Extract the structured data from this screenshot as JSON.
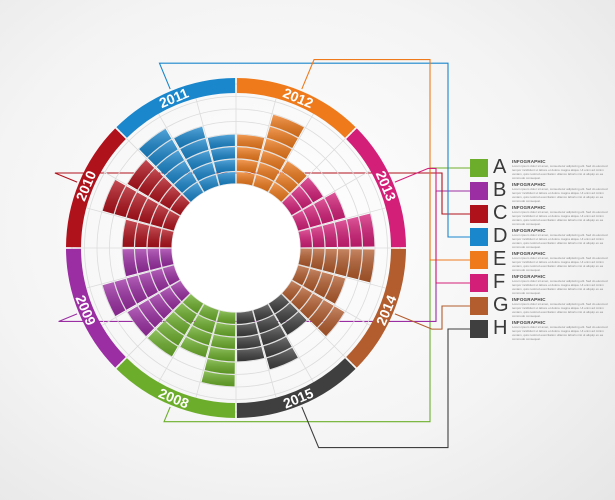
{
  "colors": {
    "green": "#6cae2b",
    "purple": "#9b2ea3",
    "red": "#b0121c",
    "blue": "#1a86cc",
    "orange": "#ee7a1c",
    "magenta": "#d41f79",
    "brown": "#b35c2d",
    "dark": "#3f3f3f"
  },
  "years": [
    {
      "label": "2009",
      "color": "#9b2ea3"
    },
    {
      "label": "2010",
      "color": "#b0121c"
    },
    {
      "label": "2011",
      "color": "#1a86cc"
    },
    {
      "label": "2012",
      "color": "#ee7a1c"
    },
    {
      "label": "2013",
      "color": "#d41f79"
    },
    {
      "label": "2014",
      "color": "#b35c2d"
    },
    {
      "label": "2015",
      "color": "#3f3f3f"
    },
    {
      "label": "2008",
      "color": "#6cae2b"
    }
  ],
  "legend": [
    {
      "letter": "A",
      "title": "INFOGRAPHIC",
      "color": "#6cae2b"
    },
    {
      "letter": "B",
      "title": "INFOGRAPHIC",
      "color": "#9b2ea3"
    },
    {
      "letter": "C",
      "title": "INFOGRAPHIC",
      "color": "#b0121c"
    },
    {
      "letter": "D",
      "title": "INFOGRAPHIC",
      "color": "#1a86cc"
    },
    {
      "letter": "E",
      "title": "INFOGRAPHIC",
      "color": "#ee7a1c"
    },
    {
      "letter": "F",
      "title": "INFOGRAPHIC",
      "color": "#d41f79"
    },
    {
      "letter": "G",
      "title": "INFOGRAPHIC",
      "color": "#b35c2d"
    },
    {
      "letter": "H",
      "title": "INFOGRAPHIC",
      "color": "#3f3f3f"
    }
  ],
  "legend_body": "Lorem ipsum dolor sit amet, consectetur adipiscing elit. Sed do eiusmod tempor incididunt ut labore et dolore magna aliqua. Ut enim ad minim veniam, quis nostrud exercitation ullamco laboris nisi ut aliquip ex ea commodo consequat.",
  "chart_data": {
    "type": "radial-bar",
    "ring_levels": 7,
    "bars_per_year": 3,
    "series": [
      {
        "year": "2009",
        "values": [
          5,
          6,
          4
        ]
      },
      {
        "year": "2010",
        "values": [
          4,
          6,
          5
        ]
      },
      {
        "year": "2011",
        "values": [
          6,
          5,
          4
        ]
      },
      {
        "year": "2012",
        "values": [
          4,
          6,
          3
        ]
      },
      {
        "year": "2013",
        "values": [
          3,
          4,
          6
        ]
      },
      {
        "year": "2014",
        "values": [
          6,
          4,
          5
        ]
      },
      {
        "year": "2015",
        "values": [
          3,
          5,
          4
        ]
      },
      {
        "year": "2008",
        "values": [
          6,
          4,
          5
        ]
      }
    ]
  }
}
